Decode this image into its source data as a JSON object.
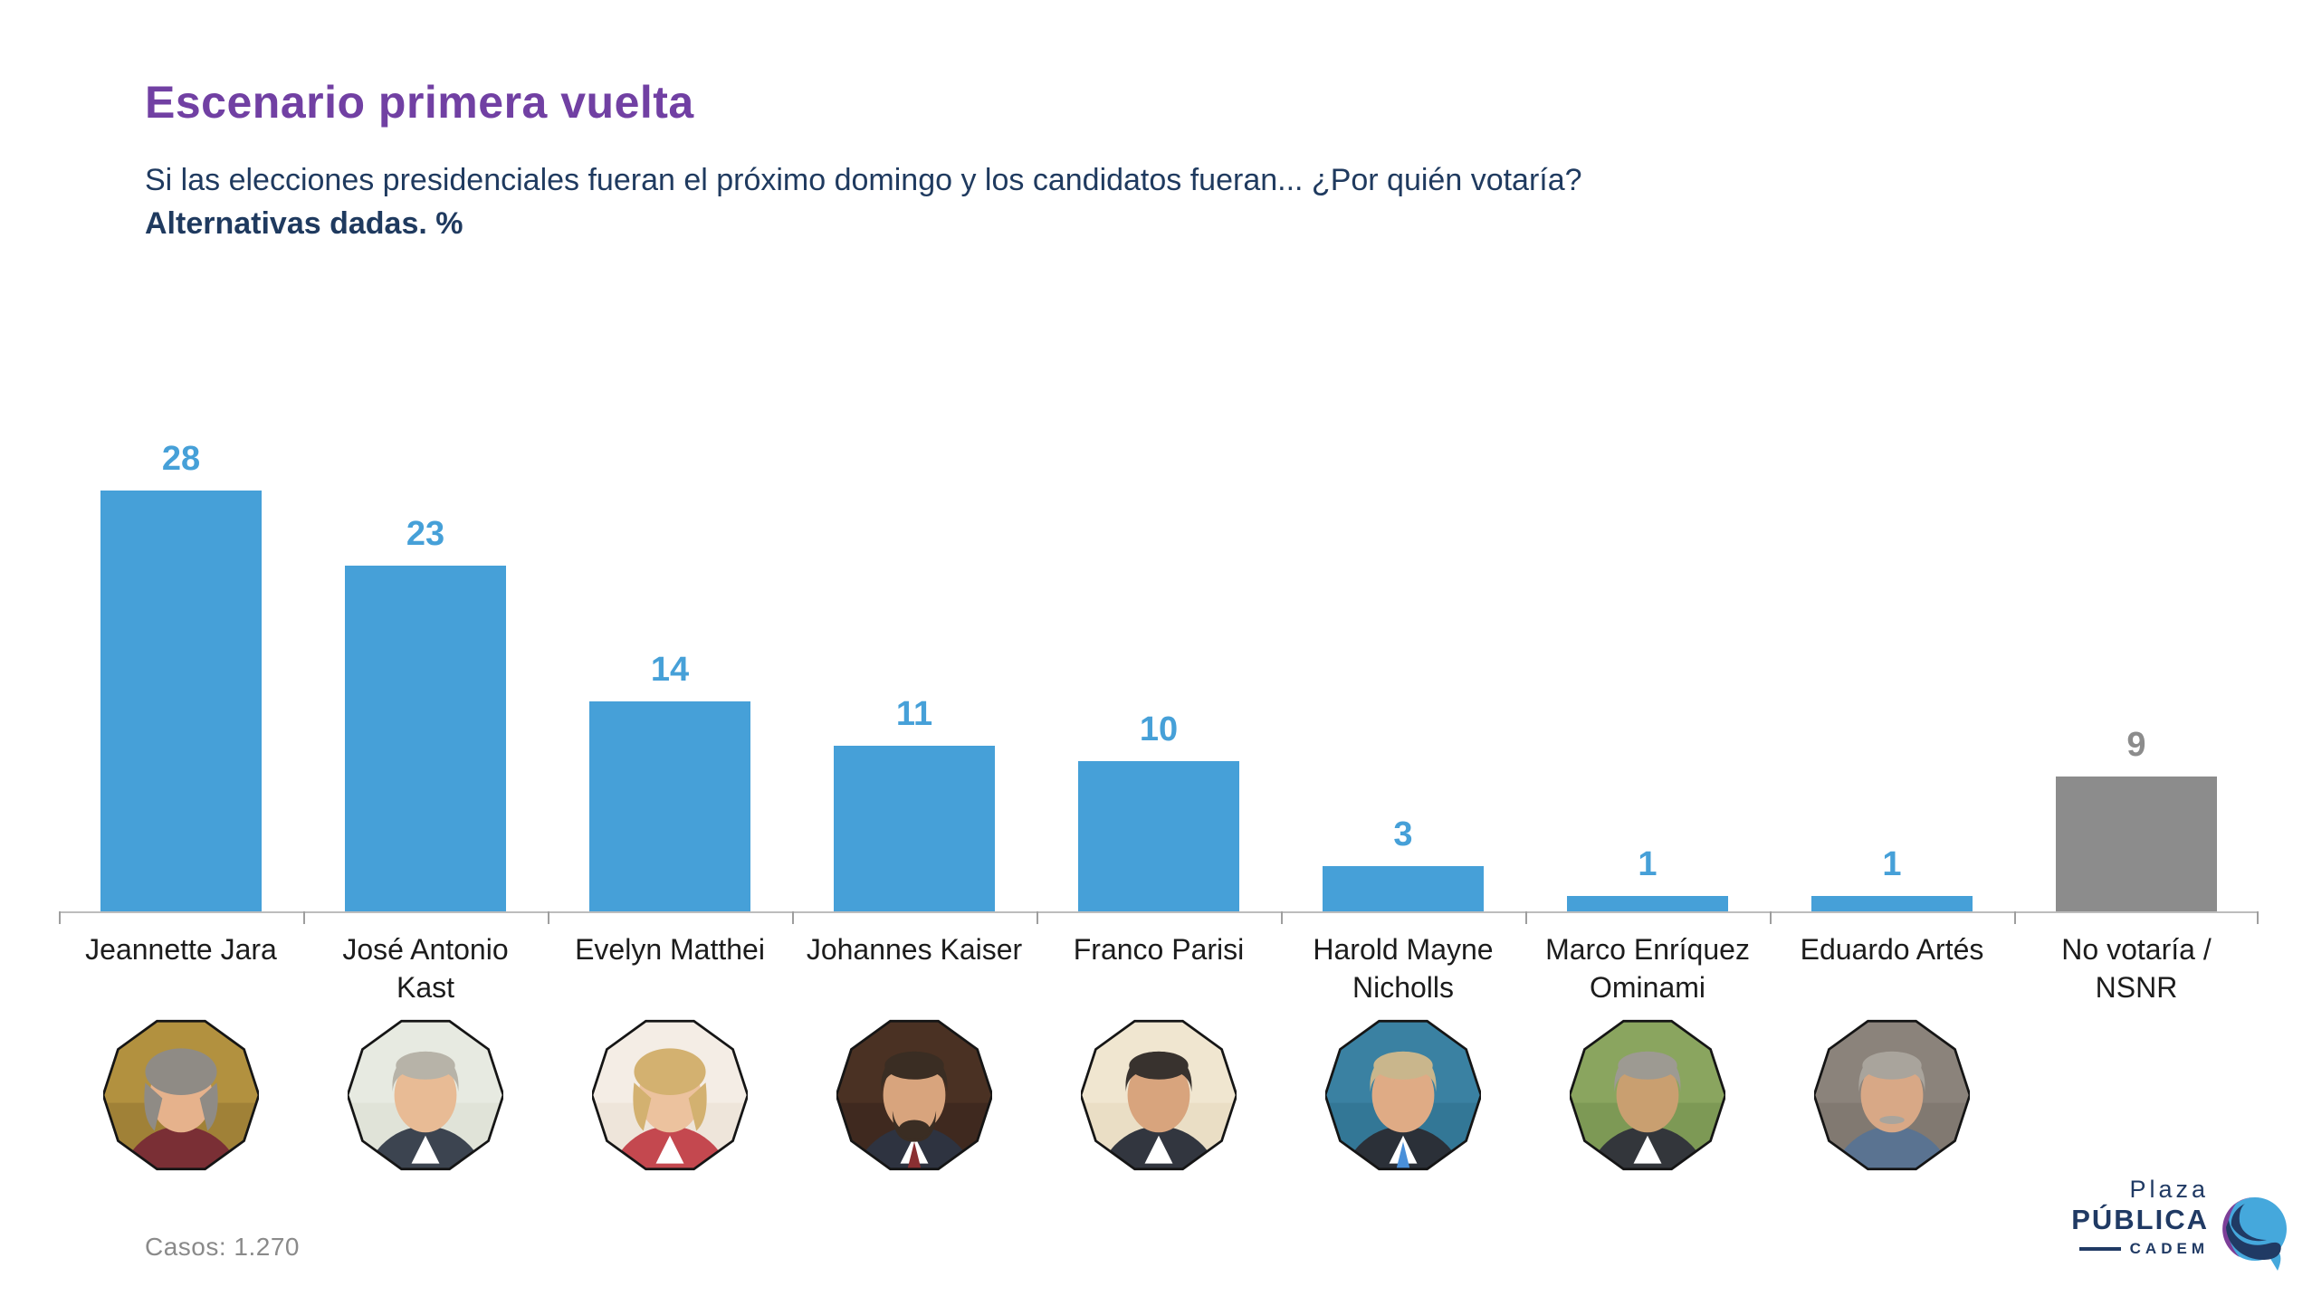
{
  "header": {
    "title": "Escenario primera vuelta",
    "subtitle": "Si las elecciones presidenciales fueran el próximo domingo y los candidatos fueran... ¿Por quién votaría?",
    "subtitle_bold": "Alternativas dadas. %"
  },
  "chart_data": {
    "type": "bar",
    "title": "Escenario primera vuelta",
    "subtitle": "Alternativas dadas. %",
    "categories": [
      "Jeannette Jara",
      "José Antonio Kast",
      "Evelyn Matthei",
      "Johannes Kaiser",
      "Franco Parisi",
      "Harold Mayne Nicholls",
      "Marco Enríquez Ominami",
      "Eduardo Artés",
      "No votaría / NSNR"
    ],
    "values": [
      28,
      23,
      14,
      11,
      10,
      3,
      1,
      1,
      9
    ],
    "xlabel": "",
    "ylabel": "",
    "ylim": [
      0,
      30
    ],
    "grid": false,
    "legend": false,
    "value_labels_above_bars": true,
    "bar_color": "#46a0d8",
    "no_vote_bar_color": "#8c8c8c"
  },
  "columns": [
    {
      "label_lines": [
        "Jeannette Jara"
      ],
      "value": 28,
      "color": "#46a0d8",
      "has_photo": true,
      "avatar": {
        "bg": "#b2913f",
        "bg2": "#8a6f2e",
        "hair": "#8f8b85",
        "skin": "#e6b28c",
        "torso": "#7a2f35",
        "style": "long",
        "facial": "none",
        "accent": ""
      }
    },
    {
      "label_lines": [
        "José Antonio",
        "Kast"
      ],
      "value": 23,
      "color": "#46a0d8",
      "has_photo": true,
      "avatar": {
        "bg": "#e7eae1",
        "bg2": "#d8dccf",
        "hair": "#b7b3a8",
        "skin": "#e8bb95",
        "torso": "#3c4450",
        "style": "short",
        "facial": "none",
        "accent": "#ffffff"
      }
    },
    {
      "label_lines": [
        "Evelyn Matthei"
      ],
      "value": 14,
      "color": "#46a0d8",
      "has_photo": true,
      "avatar": {
        "bg": "#f4ede5",
        "bg2": "#e7dccd",
        "hair": "#d3b170",
        "skin": "#ecc29e",
        "torso": "#c4484f",
        "style": "long",
        "facial": "none",
        "accent": "#ffffff"
      }
    },
    {
      "label_lines": [
        "Johannes Kaiser"
      ],
      "value": 11,
      "color": "#46a0d8",
      "has_photo": true,
      "avatar": {
        "bg": "#4a3123",
        "bg2": "#33221a",
        "hair": "#3a2d23",
        "skin": "#d8a47d",
        "torso": "#2e3340",
        "style": "short",
        "facial": "beard",
        "accent": "#8a2f32"
      }
    },
    {
      "label_lines": [
        "Franco Parisi"
      ],
      "value": 10,
      "color": "#46a0d8",
      "has_photo": true,
      "avatar": {
        "bg": "#f0e6d0",
        "bg2": "#e2d4b8",
        "hair": "#38322e",
        "skin": "#d8a47d",
        "torso": "#32363f",
        "style": "short",
        "facial": "none",
        "accent": "#ffffff"
      }
    },
    {
      "label_lines": [
        "Harold Mayne",
        "Nicholls"
      ],
      "value": 3,
      "color": "#46a0d8",
      "has_photo": true,
      "avatar": {
        "bg": "#3a81a2",
        "bg2": "#2d6a88",
        "hair": "#c9b68c",
        "skin": "#dfab85",
        "torso": "#2b3038",
        "style": "short",
        "facial": "none",
        "accent": "#4a90d9"
      }
    },
    {
      "label_lines": [
        "Marco Enríquez",
        "Ominami"
      ],
      "value": 1,
      "color": "#46a0d8",
      "has_photo": true,
      "avatar": {
        "bg": "#8aa55f",
        "bg2": "#6d8c49",
        "hair": "#9d9a92",
        "skin": "#c99f70",
        "torso": "#33363b",
        "style": "short",
        "facial": "none",
        "accent": "#ffffff"
      }
    },
    {
      "label_lines": [
        "Eduardo Artés"
      ],
      "value": 1,
      "color": "#46a0d8",
      "has_photo": true,
      "avatar": {
        "bg": "#8b837b",
        "bg2": "#756d66",
        "hair": "#a9a49c",
        "skin": "#d8a886",
        "torso": "#5a7391",
        "style": "short",
        "facial": "mustache",
        "accent": ""
      }
    },
    {
      "label_lines": [
        "No votaría /",
        "NSNR"
      ],
      "value": 9,
      "color": "#8c8c8c",
      "has_photo": false,
      "avatar": null
    }
  ],
  "footer": {
    "cases": "Casos: 1.270"
  },
  "logo": {
    "word1": "Plaza",
    "word2": "PÚBLICA",
    "word3": "CADEM",
    "navy": "#203a64",
    "blue": "#45a8dc",
    "purple": "#7c3f98"
  }
}
